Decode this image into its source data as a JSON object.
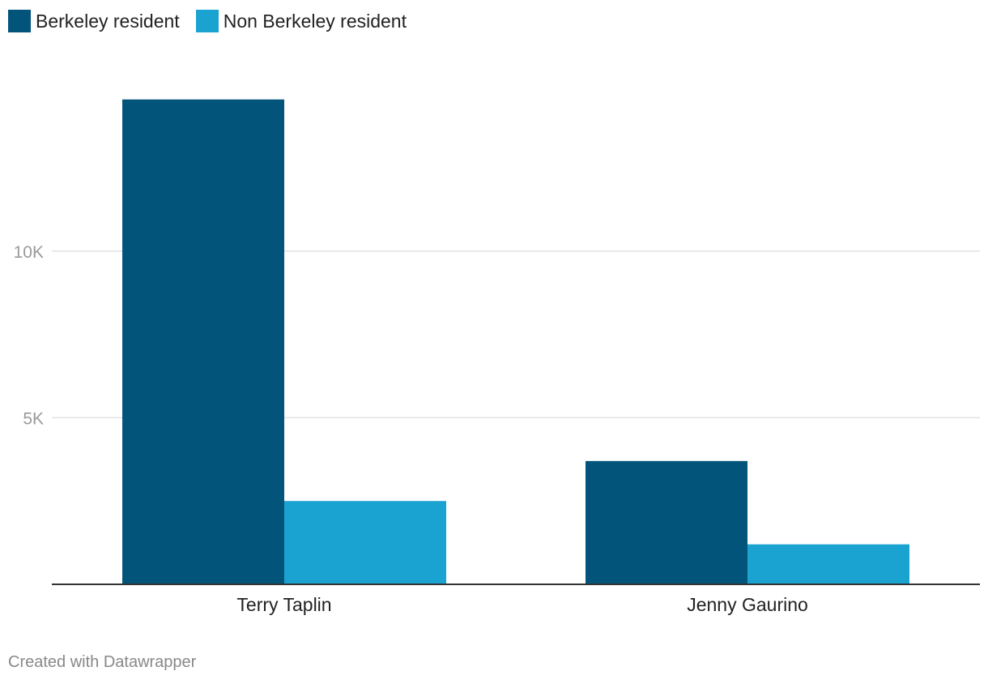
{
  "chart_data": {
    "type": "bar",
    "categories": [
      "Terry Taplin",
      "Jenny Gaurino"
    ],
    "series": [
      {
        "name": "Berkeley resident",
        "values": [
          14550,
          3700
        ],
        "color": "#03547b"
      },
      {
        "name": "Non Berkeley resident",
        "values": [
          2500,
          1200
        ],
        "color": "#1aa3d1"
      }
    ],
    "y_ticks": [
      {
        "value": 5000,
        "label": "5K"
      },
      {
        "value": 10000,
        "label": "10K"
      }
    ],
    "ylim": [
      0,
      15000
    ],
    "grid": true,
    "legend_position": "top-left"
  },
  "footer": {
    "credit": "Created with Datawrapper"
  }
}
